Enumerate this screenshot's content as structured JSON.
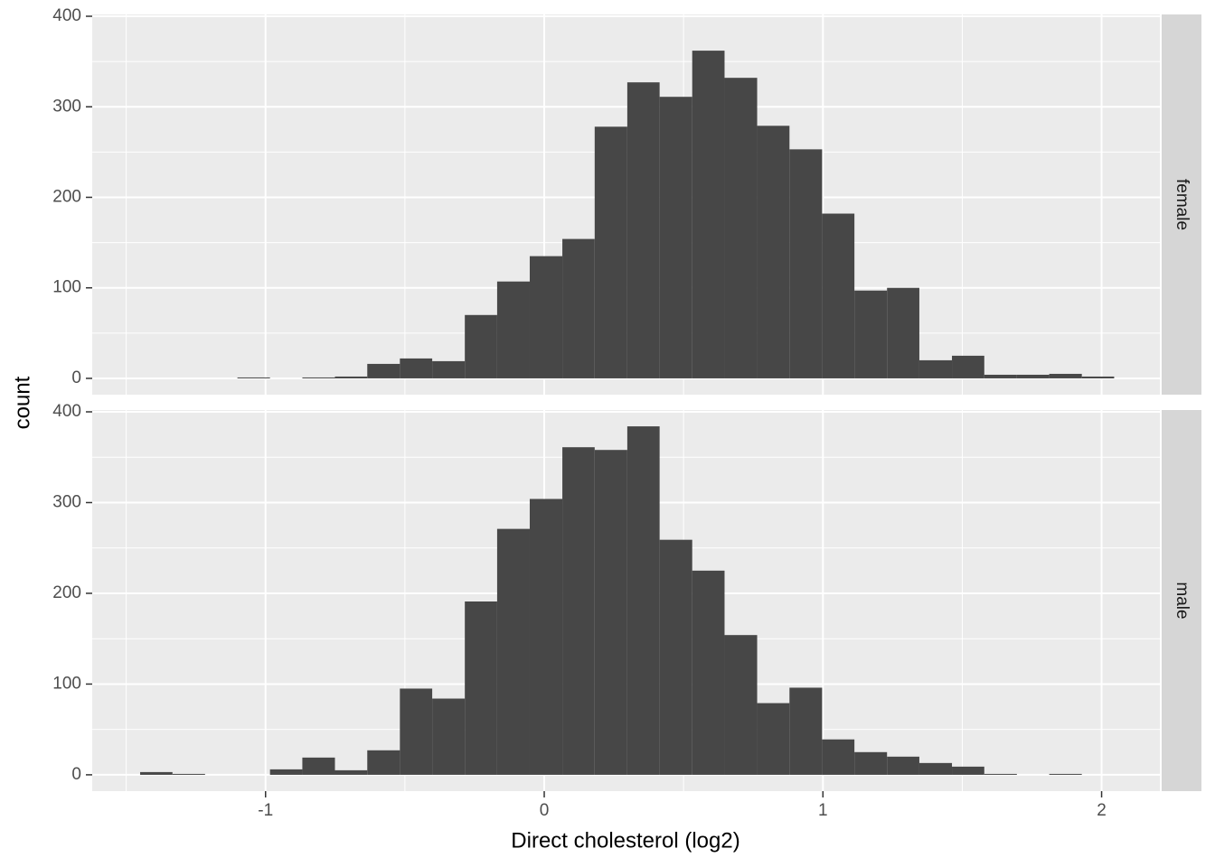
{
  "chart_data": {
    "type": "histogram",
    "xlabel": "Direct cholesterol (log2)",
    "ylabel": "count",
    "xlim": [
      -1.622,
      2.209
    ],
    "xticks": [
      -1,
      0,
      1,
      2
    ],
    "ylim": [
      -18,
      402
    ],
    "yticks": [
      0,
      100,
      200,
      300,
      400
    ],
    "grid": true,
    "color": "#474747",
    "bins": [
      -1.45,
      -1.334,
      -1.217,
      -1.101,
      -0.984,
      -0.868,
      -0.751,
      -0.635,
      -0.518,
      -0.402,
      -0.285,
      -0.169,
      -0.052,
      0.065,
      0.181,
      0.298,
      0.414,
      0.531,
      0.647,
      0.764,
      0.88,
      0.997,
      1.113,
      1.23,
      1.346,
      1.463,
      1.579,
      1.696,
      1.812,
      1.929,
      2.045
    ],
    "facets": [
      {
        "label": "female",
        "counts": [
          0,
          0,
          0,
          1,
          0,
          1,
          2,
          16,
          22,
          19,
          70,
          107,
          135,
          154,
          278,
          327,
          311,
          362,
          332,
          279,
          253,
          182,
          97,
          100,
          20,
          25,
          4,
          4,
          5,
          2
        ]
      },
      {
        "label": "male",
        "counts": [
          3,
          1,
          0,
          0,
          6,
          19,
          5,
          27,
          95,
          84,
          191,
          271,
          304,
          361,
          358,
          384,
          259,
          225,
          154,
          79,
          96,
          39,
          25,
          20,
          13,
          9,
          1,
          0,
          1,
          0
        ]
      }
    ]
  }
}
